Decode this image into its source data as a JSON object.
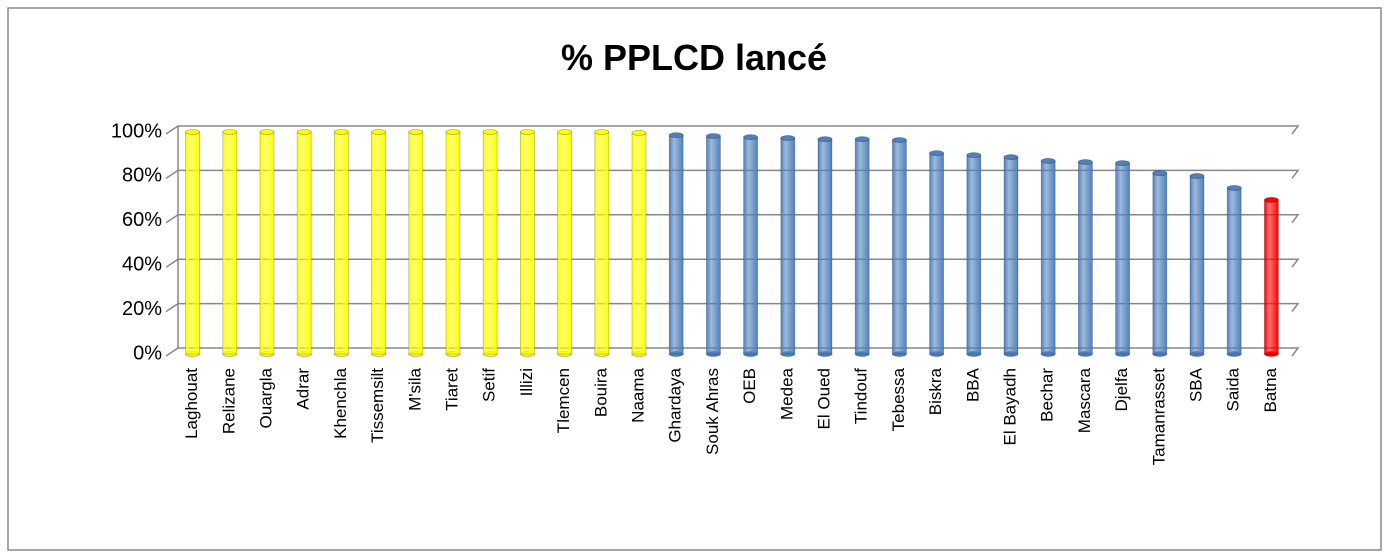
{
  "chart_data": {
    "type": "bar",
    "title": "% PPLCD lancé",
    "categories": [
      "Laghouat",
      "Relizane",
      "Ouargla",
      "Adrar",
      "Khenchla",
      "Tissemsilt",
      "M'sila",
      "Tiaret",
      "Setif",
      "Illizi",
      "Tlemcen",
      "Bouira",
      "Naama",
      "Ghardaya",
      "Souk Ahras",
      "OEB",
      "Medea",
      "El Oued",
      "Tindouf",
      "Tebessa",
      "Biskra",
      "BBA",
      "El Bayadh",
      "Bechar",
      "Mascara",
      "Djelfa",
      "Tamanrasset",
      "SBA",
      "Saida",
      "Batna"
    ],
    "values": [
      100,
      100,
      100,
      100,
      100,
      100,
      100,
      100,
      100,
      100,
      100,
      100,
      99.6,
      98.6,
      98.2,
      97.7,
      97.3,
      96.8,
      96.8,
      96.4,
      90.5,
      89.6,
      88.7,
      87,
      86.5,
      86,
      81.5,
      80.2,
      74.8,
      69.4
    ],
    "colors": [
      "#ffff00",
      "#ffff00",
      "#ffff00",
      "#ffff00",
      "#ffff00",
      "#ffff00",
      "#ffff00",
      "#ffff00",
      "#ffff00",
      "#ffff00",
      "#ffff00",
      "#ffff00",
      "#ffff00",
      "#4f81bd",
      "#4f81bd",
      "#4f81bd",
      "#4f81bd",
      "#4f81bd",
      "#4f81bd",
      "#4f81bd",
      "#4f81bd",
      "#4f81bd",
      "#4f81bd",
      "#4f81bd",
      "#4f81bd",
      "#4f81bd",
      "#4f81bd",
      "#4f81bd",
      "#4f81bd",
      "#ff0000"
    ],
    "ylim": [
      0,
      100
    ],
    "yticks": [
      {
        "value": 0,
        "label": "0%"
      },
      {
        "value": 20,
        "label": "20%"
      },
      {
        "value": 40,
        "label": "40%"
      },
      {
        "value": 60,
        "label": "60%"
      },
      {
        "value": 80,
        "label": "80%"
      },
      {
        "value": 100,
        "label": "100%"
      }
    ],
    "grid": true
  }
}
